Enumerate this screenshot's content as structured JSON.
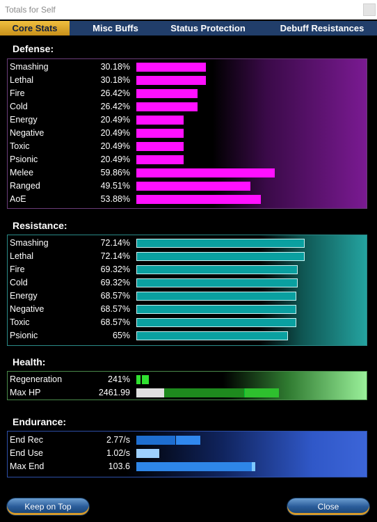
{
  "window": {
    "title": "Totals for Self"
  },
  "tabs": [
    {
      "label": "Core Stats",
      "active": true
    },
    {
      "label": "Misc Buffs",
      "active": false
    },
    {
      "label": "Status Protection",
      "active": false
    },
    {
      "label": "Debuff Resistances",
      "active": false
    }
  ],
  "defense": {
    "title": "Defense:",
    "rows": [
      {
        "label": "Smashing",
        "value": "30.18%",
        "pct": 30.18
      },
      {
        "label": "Lethal",
        "value": "30.18%",
        "pct": 30.18
      },
      {
        "label": "Fire",
        "value": "26.42%",
        "pct": 26.42
      },
      {
        "label": "Cold",
        "value": "26.42%",
        "pct": 26.42
      },
      {
        "label": "Energy",
        "value": "20.49%",
        "pct": 20.49
      },
      {
        "label": "Negative",
        "value": "20.49%",
        "pct": 20.49
      },
      {
        "label": "Toxic",
        "value": "20.49%",
        "pct": 20.49
      },
      {
        "label": "Psionic",
        "value": "20.49%",
        "pct": 20.49
      },
      {
        "label": "Melee",
        "value": "59.86%",
        "pct": 59.86
      },
      {
        "label": "Ranged",
        "value": "49.51%",
        "pct": 49.51
      },
      {
        "label": "AoE",
        "value": "53.88%",
        "pct": 53.88
      }
    ]
  },
  "resistance": {
    "title": "Resistance:",
    "rows": [
      {
        "label": "Smashing",
        "value": "72.14%",
        "pct": 72.14
      },
      {
        "label": "Lethal",
        "value": "72.14%",
        "pct": 72.14
      },
      {
        "label": "Fire",
        "value": "69.32%",
        "pct": 69.32
      },
      {
        "label": "Cold",
        "value": "69.32%",
        "pct": 69.32
      },
      {
        "label": "Energy",
        "value": "68.57%",
        "pct": 68.57
      },
      {
        "label": "Negative",
        "value": "68.57%",
        "pct": 68.57
      },
      {
        "label": "Toxic",
        "value": "68.57%",
        "pct": 68.57
      },
      {
        "label": "Psionic",
        "value": "65%",
        "pct": 65
      }
    ]
  },
  "health": {
    "title": "Health:",
    "regen": {
      "label": "Regeneration",
      "value": "241%"
    },
    "maxhp": {
      "label": "Max HP",
      "value": "2461.99"
    }
  },
  "endurance": {
    "title": "Endurance:",
    "rec": {
      "label": "End Rec",
      "value": "2.77/s"
    },
    "use": {
      "label": "End Use",
      "value": "1.02/s"
    },
    "max": {
      "label": "Max End",
      "value": "103.6"
    }
  },
  "buttons": {
    "keep_on_top": "Keep on Top",
    "close": "Close"
  },
  "colors": {
    "defense_bar": "#ff10ff",
    "resistance_bar": "#0aa0a0",
    "health_bar": "#30e030",
    "endurance_bar": "#2e86e8",
    "tab_active": "#d8a030",
    "tab_bar": "#213e6a"
  }
}
